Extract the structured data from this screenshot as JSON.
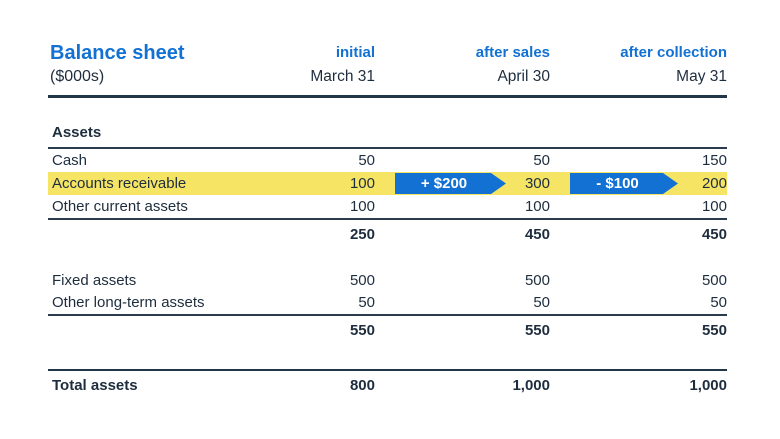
{
  "title": {
    "name": "Balance sheet",
    "unit": "($000s)"
  },
  "columns": [
    {
      "label": "initial",
      "date": "March 31"
    },
    {
      "label": "after sales",
      "date": "April 30"
    },
    {
      "label": "after collection",
      "date": "May 31"
    }
  ],
  "section": {
    "assets_label": "Assets"
  },
  "table": {
    "rows": [
      {
        "label": "Cash",
        "v1": "50",
        "v2": "50",
        "v3": "150"
      },
      {
        "label": "Accounts receivable",
        "v1": "100",
        "v2": "300",
        "v3": "200",
        "arrow1": "+ $200",
        "arrow2": "- $100"
      },
      {
        "label": "Other current assets",
        "v1": "100",
        "v2": "100",
        "v3": "100"
      }
    ],
    "current_total": {
      "v1": "250",
      "v2": "450",
      "v3": "450"
    },
    "longterm_rows": [
      {
        "label": "Fixed assets",
        "v1": "500",
        "v2": "500",
        "v3": "500"
      },
      {
        "label": "Other long-term assets",
        "v1": "50",
        "v2": "50",
        "v3": "50"
      }
    ],
    "longterm_total": {
      "v1": "550",
      "v2": "550",
      "v3": "550"
    },
    "total": {
      "label": "Total assets",
      "v1": "800",
      "v2": "1,000",
      "v3": "1,000"
    }
  },
  "colors": {
    "heading_blue": "#1271d3",
    "arrow_blue": "#1271d3",
    "highlight_yellow": "#f6e464",
    "text_dark": "#1e2d3e",
    "rule_dark": "#223648"
  }
}
